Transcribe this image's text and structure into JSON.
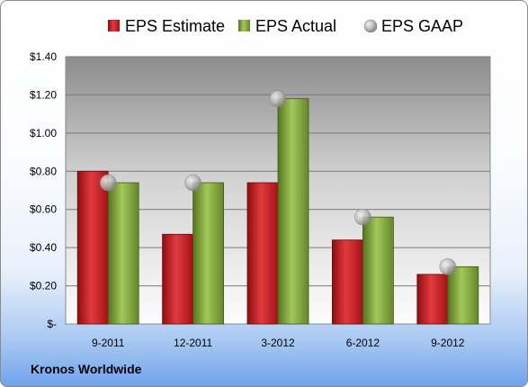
{
  "chart_data": {
    "type": "bar",
    "categories": [
      "9-2011",
      "12-2011",
      "3-2012",
      "6-2012",
      "9-2012"
    ],
    "series": [
      {
        "name": "EPS Estimate",
        "type": "bar",
        "color": "#c0161b",
        "values": [
          0.8,
          0.47,
          0.74,
          0.44,
          0.26
        ]
      },
      {
        "name": "EPS Actual",
        "type": "bar",
        "color": "#7fa33a",
        "values": [
          0.74,
          0.74,
          1.18,
          0.56,
          0.3
        ]
      },
      {
        "name": "EPS GAAP",
        "type": "marker",
        "color": "#a8a8a8",
        "values": [
          0.74,
          0.74,
          1.18,
          0.56,
          0.3
        ]
      }
    ],
    "ylim": [
      0,
      1.4
    ],
    "yticks": [
      0,
      0.2,
      0.4,
      0.6,
      0.8,
      1.0,
      1.2,
      1.4
    ],
    "ytick_labels": [
      "$-",
      "$0.20",
      "$0.40",
      "$0.60",
      "$0.80",
      "$1.00",
      "$1.20",
      "$1.40"
    ],
    "grid": true,
    "legend_position": "top",
    "xlabel": "",
    "ylabel": ""
  },
  "footer": {
    "company": "Kronos Worldwide"
  }
}
